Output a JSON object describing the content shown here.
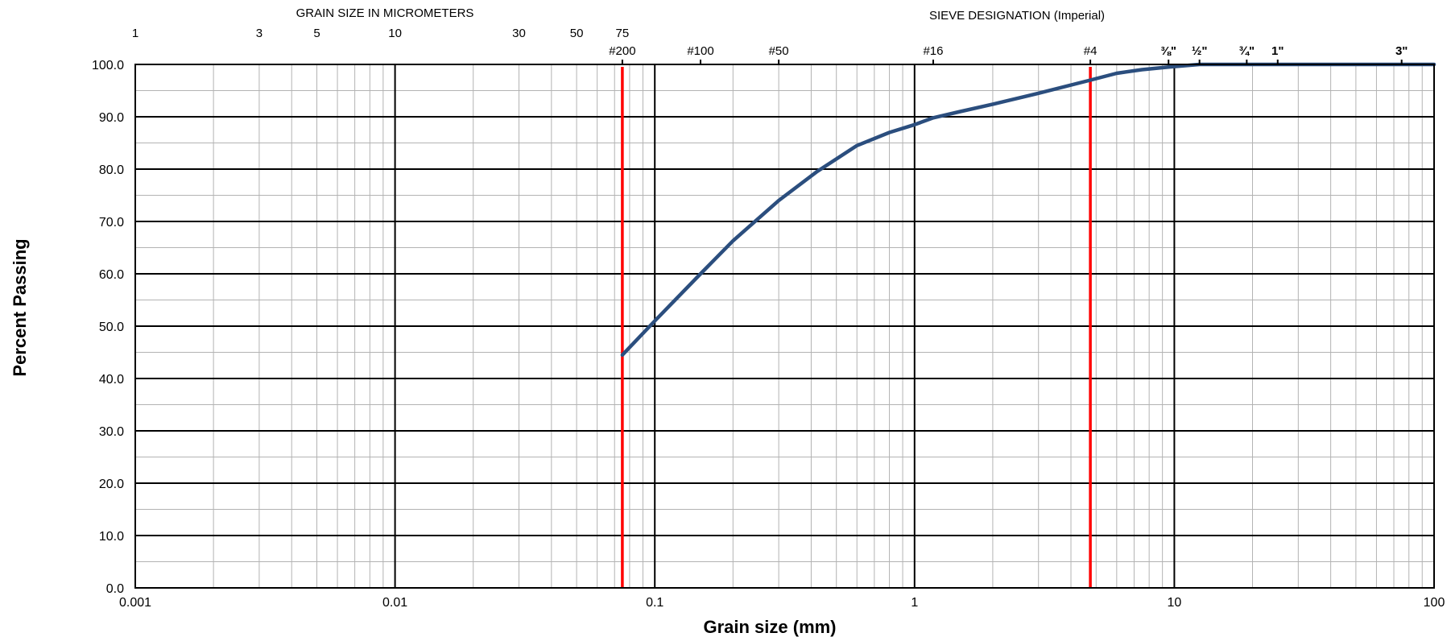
{
  "chart_data": {
    "type": "line",
    "xlabel": "Grain size (mm)",
    "ylabel": "Percent  Passing",
    "x_scale": "log",
    "xlim": [
      0.001,
      100
    ],
    "ylim": [
      0,
      100
    ],
    "grid": true,
    "x_tick_labels": [
      "0.001",
      "0.01",
      "0.1",
      "1",
      "10",
      "100"
    ],
    "x_ticks": [
      0.001,
      0.01,
      0.1,
      1,
      10,
      100
    ],
    "y_tick_labels": [
      "0.0",
      "10.0",
      "20.0",
      "30.0",
      "40.0",
      "50.0",
      "60.0",
      "70.0",
      "80.0",
      "90.0",
      "100.0"
    ],
    "y_ticks": [
      0,
      10,
      20,
      30,
      40,
      50,
      60,
      70,
      80,
      90,
      100
    ],
    "top_axis_left": {
      "title": "GRAIN SIZE IN MICROMETERS",
      "ticks": [
        {
          "label": "1",
          "value": 0.001
        },
        {
          "label": "3",
          "value": 0.003
        },
        {
          "label": "5",
          "value": 0.005
        },
        {
          "label": "10",
          "value": 0.01
        },
        {
          "label": "30",
          "value": 0.03
        },
        {
          "label": "50",
          "value": 0.05
        },
        {
          "label": "75",
          "value": 0.075
        }
      ]
    },
    "top_axis_right": {
      "title": "SIEVE  DESIGNATION  (Imperial)",
      "ticks": [
        {
          "label": "#200",
          "value": 0.075
        },
        {
          "label": "#100",
          "value": 0.15
        },
        {
          "label": "#50",
          "value": 0.3
        },
        {
          "label": "#16",
          "value": 1.18
        },
        {
          "label": "#4",
          "value": 4.75
        },
        {
          "label": "⅜\"",
          "value": 9.5
        },
        {
          "label": "½\"",
          "value": 12.5
        },
        {
          "label": "¾\"",
          "value": 19
        },
        {
          "label": "1\"",
          "value": 25
        },
        {
          "label": "3\"",
          "value": 75
        }
      ]
    },
    "vertical_lines": [
      {
        "x": 0.075,
        "color": "#ff0000"
      },
      {
        "x": 4.75,
        "color": "#ff0000"
      }
    ],
    "series": [
      {
        "color": "#2b4e7e",
        "x": [
          0.075,
          0.1,
          0.15,
          0.2,
          0.3,
          0.42,
          0.6,
          0.8,
          1.0,
          1.18,
          1.5,
          2.0,
          3.0,
          4.75,
          6.0,
          7.5,
          9.5,
          12.5,
          19,
          25,
          37.5,
          50,
          75,
          100
        ],
        "y": [
          44.5,
          51.0,
          60.0,
          66.3,
          74.0,
          79.5,
          84.5,
          87.0,
          88.5,
          89.8,
          91.0,
          92.4,
          94.5,
          97.0,
          98.3,
          99.0,
          99.5,
          100,
          100,
          100,
          100,
          100,
          100,
          100
        ]
      }
    ]
  }
}
